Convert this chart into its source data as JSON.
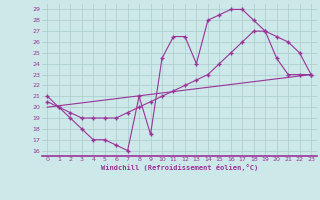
{
  "xlabel": "Windchill (Refroidissement éolien,°C)",
  "bg_color": "#cce8e8",
  "grid_color": "#aacccc",
  "line_color": "#993399",
  "xlim": [
    -0.5,
    23.5
  ],
  "ylim": [
    15.5,
    29.5
  ],
  "yticks": [
    16,
    17,
    18,
    19,
    20,
    21,
    22,
    23,
    24,
    25,
    26,
    27,
    28,
    29
  ],
  "xticks": [
    0,
    1,
    2,
    3,
    4,
    5,
    6,
    7,
    8,
    9,
    10,
    11,
    12,
    13,
    14,
    15,
    16,
    17,
    18,
    19,
    20,
    21,
    22,
    23
  ],
  "line1_x": [
    0,
    1,
    2,
    3,
    4,
    5,
    6,
    7,
    8,
    9,
    10,
    11,
    12,
    13,
    14,
    15,
    16,
    17,
    18,
    19,
    20,
    21,
    22,
    23
  ],
  "line1_y": [
    21,
    20,
    19,
    18,
    17,
    17,
    16.5,
    16,
    21,
    17.5,
    24.5,
    26.5,
    26.5,
    24,
    28,
    28.5,
    29,
    29,
    28,
    27,
    24.5,
    23,
    23,
    23
  ],
  "line2_x": [
    0,
    1,
    2,
    3,
    4,
    5,
    6,
    7,
    8,
    9,
    10,
    11,
    12,
    13,
    14,
    15,
    16,
    17,
    18,
    19,
    20,
    21,
    22,
    23
  ],
  "line2_y": [
    20.5,
    20,
    19.5,
    19,
    19,
    19,
    19,
    19.5,
    20,
    20.5,
    21,
    21.5,
    22,
    22.5,
    23,
    24,
    25,
    26,
    27,
    27,
    26.5,
    26,
    25,
    23
  ],
  "line3_x": [
    0,
    23
  ],
  "line3_y": [
    20,
    23
  ]
}
